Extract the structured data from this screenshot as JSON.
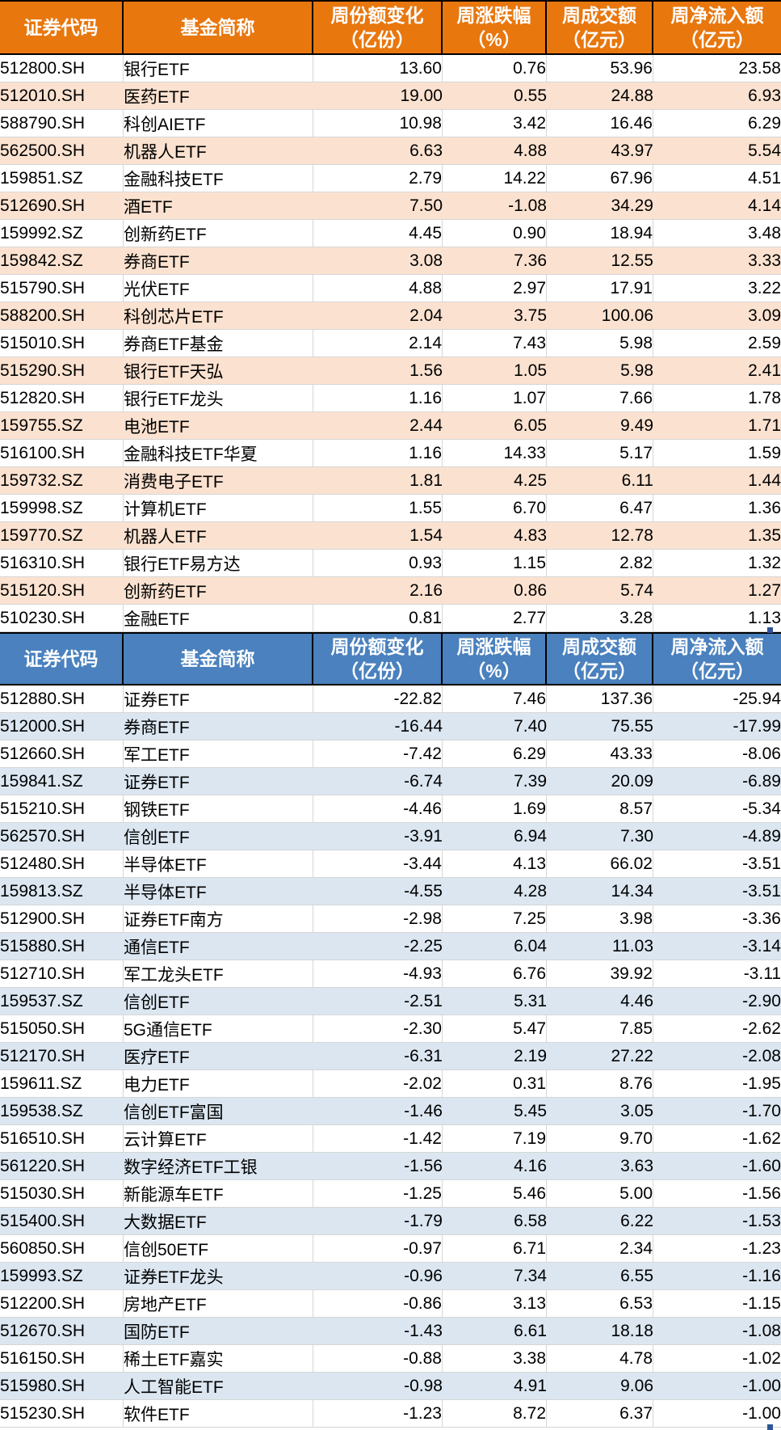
{
  "style": {
    "table1_header_bg": "#E8770E",
    "table1_row_alt_bg": "#FBE2D0",
    "table2_header_bg": "#4A81BE",
    "table2_row_alt_bg": "#DBE6F1",
    "grid_line": "#D6D6D6",
    "header_border": "#000000",
    "header_text_color": "#FFFFFF",
    "body_text_color": "#000000",
    "selection_handle": "#2F5496"
  },
  "chart_data": [
    {
      "type": "table",
      "name": "weekly-net-inflow-table",
      "columns": [
        {
          "key": "code",
          "label": "证券代码"
        },
        {
          "key": "name",
          "label": "基金简称"
        },
        {
          "key": "share_change",
          "label": "周份额变化",
          "label2": "（亿份）"
        },
        {
          "key": "pct_change",
          "label": "周涨跌幅",
          "label2": "（%）"
        },
        {
          "key": "turnover",
          "label": "周成交额",
          "label2": "（亿元）"
        },
        {
          "key": "net_flow",
          "label": "周净流入额",
          "label2": "（亿元）"
        }
      ],
      "rows": [
        [
          "512800.SH",
          "银行ETF",
          "13.60",
          "0.76",
          "53.96",
          "23.58"
        ],
        [
          "512010.SH",
          "医药ETF",
          "19.00",
          "0.55",
          "24.88",
          "6.93"
        ],
        [
          "588790.SH",
          "科创AIETF",
          "10.98",
          "3.42",
          "16.46",
          "6.29"
        ],
        [
          "562500.SH",
          "机器人ETF",
          "6.63",
          "4.88",
          "43.97",
          "5.54"
        ],
        [
          "159851.SZ",
          "金融科技ETF",
          "2.79",
          "14.22",
          "67.96",
          "4.51"
        ],
        [
          "512690.SH",
          "酒ETF",
          "7.50",
          "-1.08",
          "34.29",
          "4.14"
        ],
        [
          "159992.SZ",
          "创新药ETF",
          "4.45",
          "0.90",
          "18.94",
          "3.48"
        ],
        [
          "159842.SZ",
          "券商ETF",
          "3.08",
          "7.36",
          "12.55",
          "3.33"
        ],
        [
          "515790.SH",
          "光伏ETF",
          "4.88",
          "2.97",
          "17.91",
          "3.22"
        ],
        [
          "588200.SH",
          "科创芯片ETF",
          "2.04",
          "3.75",
          "100.06",
          "3.09"
        ],
        [
          "515010.SH",
          "券商ETF基金",
          "2.14",
          "7.43",
          "5.98",
          "2.59"
        ],
        [
          "515290.SH",
          "银行ETF天弘",
          "1.56",
          "1.05",
          "5.98",
          "2.41"
        ],
        [
          "512820.SH",
          "银行ETF龙头",
          "1.16",
          "1.07",
          "7.66",
          "1.78"
        ],
        [
          "159755.SZ",
          "电池ETF",
          "2.44",
          "6.05",
          "9.49",
          "1.71"
        ],
        [
          "516100.SH",
          "金融科技ETF华夏",
          "1.16",
          "14.33",
          "5.17",
          "1.59"
        ],
        [
          "159732.SZ",
          "消费电子ETF",
          "1.81",
          "4.25",
          "6.11",
          "1.44"
        ],
        [
          "159998.SZ",
          "计算机ETF",
          "1.55",
          "6.70",
          "6.47",
          "1.36"
        ],
        [
          "159770.SZ",
          "机器人ETF",
          "1.54",
          "4.83",
          "12.78",
          "1.35"
        ],
        [
          "516310.SH",
          "银行ETF易方达",
          "0.93",
          "1.15",
          "2.82",
          "1.32"
        ],
        [
          "515120.SH",
          "创新药ETF",
          "2.16",
          "0.86",
          "5.74",
          "1.27"
        ],
        [
          "510230.SH",
          "金融ETF",
          "0.81",
          "2.77",
          "3.28",
          "1.13"
        ]
      ]
    },
    {
      "type": "table",
      "name": "weekly-net-outflow-table",
      "columns": [
        {
          "key": "code",
          "label": "证券代码"
        },
        {
          "key": "name",
          "label": "基金简称"
        },
        {
          "key": "share_change",
          "label": "周份额变化",
          "label2": "（亿份）"
        },
        {
          "key": "pct_change",
          "label": "周涨跌幅",
          "label2": "（%）"
        },
        {
          "key": "turnover",
          "label": "周成交额",
          "label2": "（亿元）"
        },
        {
          "key": "net_flow",
          "label": "周净流入额",
          "label2": "（亿元）"
        }
      ],
      "rows": [
        [
          "512880.SH",
          "证券ETF",
          "-22.82",
          "7.46",
          "137.36",
          "-25.94"
        ],
        [
          "512000.SH",
          "券商ETF",
          "-16.44",
          "7.40",
          "75.55",
          "-17.99"
        ],
        [
          "512660.SH",
          "军工ETF",
          "-7.42",
          "6.29",
          "43.33",
          "-8.06"
        ],
        [
          "159841.SZ",
          "证券ETF",
          "-6.74",
          "7.39",
          "20.09",
          "-6.89"
        ],
        [
          "515210.SH",
          "钢铁ETF",
          "-4.46",
          "1.69",
          "8.57",
          "-5.34"
        ],
        [
          "562570.SH",
          "信创ETF",
          "-3.91",
          "6.94",
          "7.30",
          "-4.89"
        ],
        [
          "512480.SH",
          "半导体ETF",
          "-3.44",
          "4.13",
          "66.02",
          "-3.51"
        ],
        [
          "159813.SZ",
          "半导体ETF",
          "-4.55",
          "4.28",
          "14.34",
          "-3.51"
        ],
        [
          "512900.SH",
          "证券ETF南方",
          "-2.98",
          "7.25",
          "3.98",
          "-3.36"
        ],
        [
          "515880.SH",
          "通信ETF",
          "-2.25",
          "6.04",
          "11.03",
          "-3.14"
        ],
        [
          "512710.SH",
          "军工龙头ETF",
          "-4.93",
          "6.76",
          "39.92",
          "-3.11"
        ],
        [
          "159537.SZ",
          "信创ETF",
          "-2.51",
          "5.31",
          "4.46",
          "-2.90"
        ],
        [
          "515050.SH",
          "5G通信ETF",
          "-2.30",
          "5.47",
          "7.85",
          "-2.62"
        ],
        [
          "512170.SH",
          "医疗ETF",
          "-6.31",
          "2.19",
          "27.22",
          "-2.08"
        ],
        [
          "159611.SZ",
          "电力ETF",
          "-2.02",
          "0.31",
          "8.76",
          "-1.95"
        ],
        [
          "159538.SZ",
          "信创ETF富国",
          "-1.46",
          "5.45",
          "3.05",
          "-1.70"
        ],
        [
          "516510.SH",
          "云计算ETF",
          "-1.42",
          "7.19",
          "9.70",
          "-1.62"
        ],
        [
          "561220.SH",
          "数字经济ETF工银",
          "-1.56",
          "4.16",
          "3.63",
          "-1.60"
        ],
        [
          "515030.SH",
          "新能源车ETF",
          "-1.25",
          "5.46",
          "5.00",
          "-1.56"
        ],
        [
          "515400.SH",
          "大数据ETF",
          "-1.79",
          "6.58",
          "6.22",
          "-1.53"
        ],
        [
          "560850.SH",
          "信创50ETF",
          "-0.97",
          "6.71",
          "2.34",
          "-1.23"
        ],
        [
          "159993.SZ",
          "证券ETF龙头",
          "-0.96",
          "7.34",
          "6.55",
          "-1.16"
        ],
        [
          "512200.SH",
          "房地产ETF",
          "-0.86",
          "3.13",
          "6.53",
          "-1.15"
        ],
        [
          "512670.SH",
          "国防ETF",
          "-1.43",
          "6.61",
          "18.18",
          "-1.08"
        ],
        [
          "516150.SH",
          "稀土ETF嘉实",
          "-0.88",
          "3.38",
          "4.78",
          "-1.02"
        ],
        [
          "515980.SH",
          "人工智能ETF",
          "-0.98",
          "4.91",
          "9.06",
          "-1.00"
        ],
        [
          "515230.SH",
          "软件ETF",
          "-1.23",
          "8.72",
          "6.37",
          "-1.00"
        ]
      ]
    }
  ]
}
